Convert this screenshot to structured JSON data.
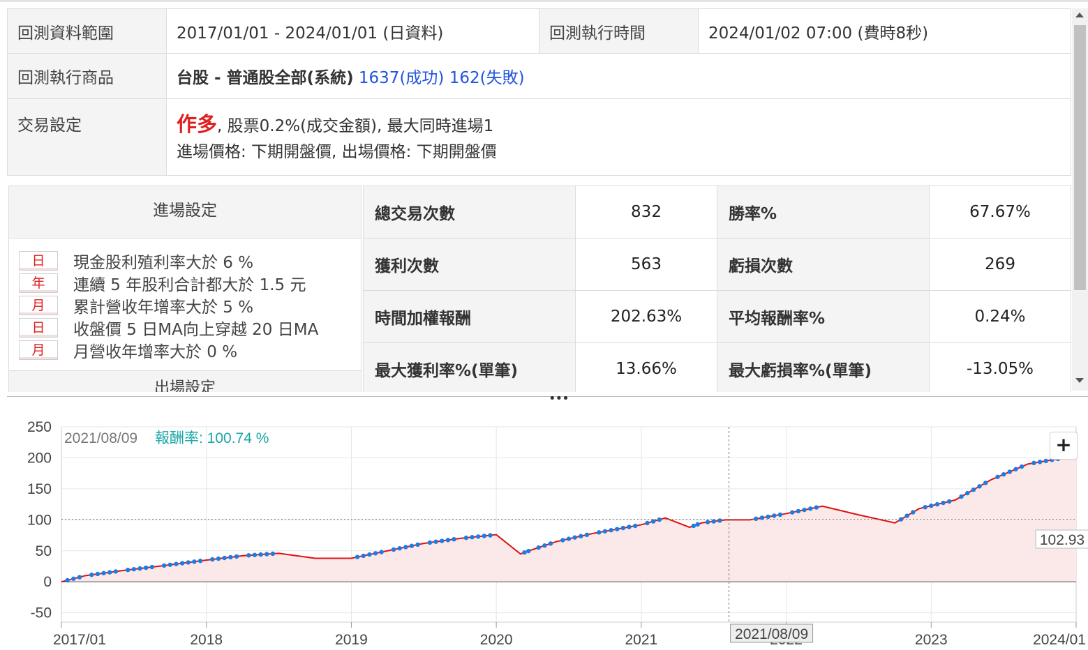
{
  "info": {
    "range_label": "回測資料範圍",
    "range_value": "2017/01/01 - 2024/01/01 (日資料)",
    "time_label": "回測執行時間",
    "time_value": "2024/01/02 07:00 (費時8秒)",
    "product_label": "回測執行商品",
    "product_value": "台股 - 普通股全部(系統)",
    "product_success": "1637(成功)",
    "product_fail": "162(失敗)",
    "trade_label": "交易設定",
    "trade_direction": "作多",
    "trade_line1_rest": ", 股票0.2%(成交金額), 最大同時進場1",
    "trade_line2": "進場價格: 下期開盤價, 出場價格: 下期開盤價"
  },
  "entry": {
    "header": "進場設定",
    "conditions": [
      {
        "tag": "日",
        "text": "現金股利殖利率大於 6 %"
      },
      {
        "tag": "年",
        "text": "連續 5 年股利合計都大於 1.5 元"
      },
      {
        "tag": "月",
        "text": "累計營收年增率大於 5 %"
      },
      {
        "tag": "日",
        "text": "收盤價 5 日MA向上穿越 20 日MA"
      },
      {
        "tag": "月",
        "text": "月營收年增率大於 0 %"
      }
    ],
    "exit_header": "出場設定"
  },
  "stats": {
    "total_trades_label": "總交易次數",
    "total_trades": "832",
    "win_rate_label": "勝率%",
    "win_rate": "67.67%",
    "wins_label": "獲利次數",
    "wins": "563",
    "losses_label": "虧損次數",
    "losses": "269",
    "twr_label": "時間加權報酬",
    "twr": "202.63%",
    "avg_ret_label": "平均報酬率%",
    "avg_ret": "0.24%",
    "max_win_label": "最大獲利率%(單筆)",
    "max_win": "13.66%",
    "max_loss_label": "最大虧損率%(單筆)",
    "max_loss": "-13.05%"
  },
  "colors": {
    "accent_red": "#e02020",
    "accent_blue": "#2255dd",
    "trade_dots": "#1e7be0",
    "tooltip_teal": "#1aa6a6"
  },
  "chart": {
    "zoom_icon": "plus-icon",
    "tooltip_date": "2021/08/09",
    "tooltip_label": "報酬率:",
    "tooltip_value": "100.74 %",
    "crosshair_x_label": "2021/08/09",
    "last_value_label": "102.93"
  },
  "chart_data": {
    "type": "area",
    "ylim": [
      -65,
      250
    ],
    "y_ticks": [
      "250",
      "200",
      "150",
      "100",
      "50",
      "0",
      "-50"
    ],
    "x_ticks": [
      "2017/01",
      "2018",
      "2019",
      "2020",
      "2021",
      "2021/08/09",
      "2022",
      "2023",
      "2024/01"
    ],
    "series": [
      {
        "x": [
          "2017/01",
          "2017/03",
          "2017/06",
          "2017/09",
          "2018/01",
          "2018/04",
          "2018/07",
          "2018/10",
          "2019/01",
          "2019/04",
          "2019/07",
          "2019/10",
          "2020/01",
          "2020/03",
          "2020/04",
          "2020/06",
          "2020/09",
          "2021/01",
          "2021/03",
          "2021/05",
          "2021/06",
          "2021/08",
          "2021/10",
          "2022/01",
          "2022/04",
          "2022/07",
          "2022/10",
          "2022/12",
          "2023/03",
          "2023/06",
          "2023/09",
          "2023/12",
          "2024/01"
        ],
        "values": [
          0,
          10,
          18,
          25,
          35,
          42,
          46,
          38,
          38,
          50,
          62,
          70,
          76,
          45,
          52,
          65,
          78,
          92,
          103,
          88,
          95,
          100,
          100,
          110,
          122,
          108,
          95,
          118,
          132,
          165,
          190,
          200,
          204
        ]
      }
    ]
  }
}
